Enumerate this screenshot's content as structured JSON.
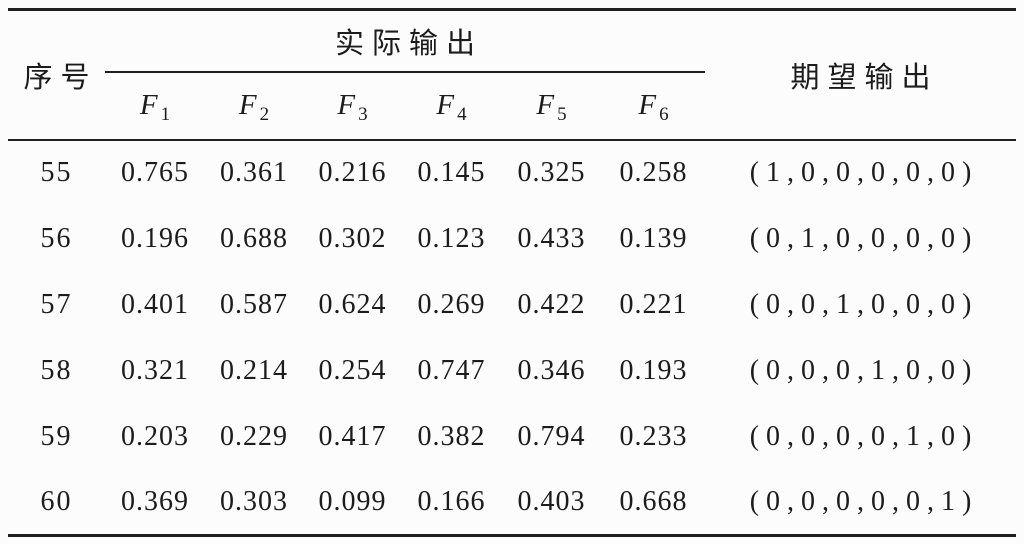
{
  "table": {
    "columns": {
      "serial": "序号",
      "actual_group": "实际输出",
      "expected": "期望输出",
      "f_headers": [
        {
          "base": "F",
          "sub": "1"
        },
        {
          "base": "F",
          "sub": "2"
        },
        {
          "base": "F",
          "sub": "3"
        },
        {
          "base": "F",
          "sub": "4"
        },
        {
          "base": "F",
          "sub": "5"
        },
        {
          "base": "F",
          "sub": "6"
        }
      ]
    },
    "rows": [
      {
        "serial": "55",
        "values": [
          "0.765",
          "0.361",
          "0.216",
          "0.145",
          "0.325",
          "0.258"
        ],
        "expected": "(1,0,0,0,0,0)"
      },
      {
        "serial": "56",
        "values": [
          "0.196",
          "0.688",
          "0.302",
          "0.123",
          "0.433",
          "0.139"
        ],
        "expected": "(0,1,0,0,0,0)"
      },
      {
        "serial": "57",
        "values": [
          "0.401",
          "0.587",
          "0.624",
          "0.269",
          "0.422",
          "0.221"
        ],
        "expected": "(0,0,1,0,0,0)"
      },
      {
        "serial": "58",
        "values": [
          "0.321",
          "0.214",
          "0.254",
          "0.747",
          "0.346",
          "0.193"
        ],
        "expected": "(0,0,0,1,0,0)"
      },
      {
        "serial": "59",
        "values": [
          "0.203",
          "0.229",
          "0.417",
          "0.382",
          "0.794",
          "0.233"
        ],
        "expected": "(0,0,0,0,1,0)"
      },
      {
        "serial": "60",
        "values": [
          "0.369",
          "0.303",
          "0.099",
          "0.166",
          "0.403",
          "0.668"
        ],
        "expected": "(0,0,0,0,0,1)"
      }
    ]
  },
  "colors": {
    "text": "#1c1c1c",
    "rule": "#1f1f1f",
    "background": "#fcfcfc"
  }
}
